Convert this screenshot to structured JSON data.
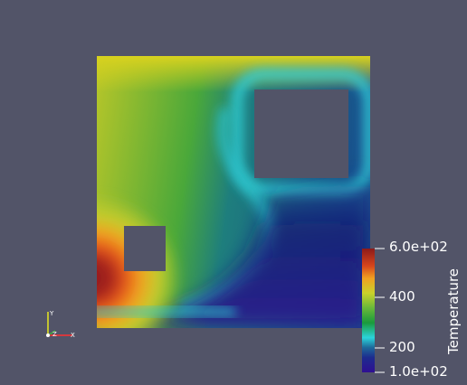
{
  "scene": {
    "background_color": "#525468",
    "field_name": "Temperature",
    "colormap": "rainbow/jet: dark blue -> cyan -> green -> yellow -> orange -> dark red"
  },
  "legend": {
    "title": "Temperature",
    "range": [
      100,
      600
    ],
    "max_label": "6.0e+02",
    "mid_label": "400",
    "low_label": "200",
    "min_label": "1.0e+02",
    "tick_values": [
      600,
      400,
      200,
      100
    ]
  },
  "axes": {
    "x_label": "X",
    "y_label": "Y",
    "z_label": "Z",
    "x_color": "#ff3030",
    "y_color": "#e8e820",
    "z_color": "#40b040"
  }
}
